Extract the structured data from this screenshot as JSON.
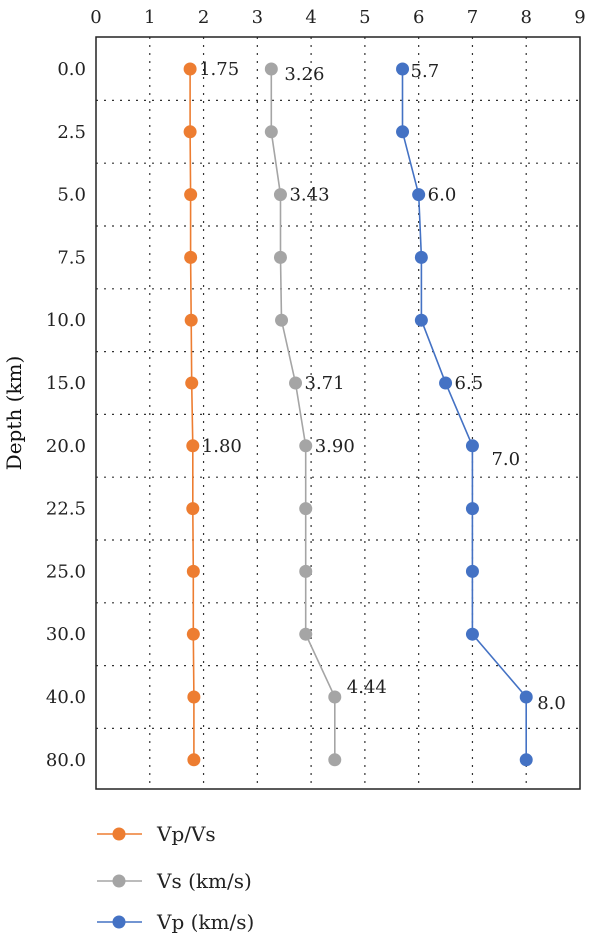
{
  "chart_data": {
    "type": "line",
    "ylabel": "Depth (km)",
    "xlim": [
      0,
      9
    ],
    "x_ticks": [
      "0",
      "1",
      "2",
      "3",
      "4",
      "5",
      "6",
      "7",
      "8",
      "9"
    ],
    "depth_categories": [
      "0.0",
      "2.5",
      "5.0",
      "7.5",
      "10.0",
      "15.0",
      "20.0",
      "22.5",
      "25.0",
      "30.0",
      "40.0",
      "80.0"
    ],
    "grid": true,
    "legend_position": "bottom-left",
    "series": [
      {
        "name": "Vp/Vs",
        "color": "#ED7D31",
        "values": [
          1.75,
          1.75,
          1.76,
          1.76,
          1.77,
          1.78,
          1.8,
          1.8,
          1.81,
          1.81,
          1.82,
          1.82
        ],
        "labels": [
          {
            "index": 0,
            "text": "1.75"
          },
          {
            "index": 6,
            "text": "1.80"
          }
        ]
      },
      {
        "name": "Vs (km/s)",
        "color": "#A5A5A5",
        "values": [
          3.26,
          3.26,
          3.43,
          3.43,
          3.45,
          3.71,
          3.9,
          3.9,
          3.9,
          3.9,
          4.44,
          4.44
        ],
        "labels": [
          {
            "index": 0,
            "text": "3.26"
          },
          {
            "index": 2,
            "text": "3.43"
          },
          {
            "index": 5,
            "text": "3.71"
          },
          {
            "index": 6,
            "text": "3.90"
          },
          {
            "index": 10,
            "text": "4.44"
          }
        ]
      },
      {
        "name": "Vp (km/s)",
        "color": "#4472C4",
        "values": [
          5.7,
          5.7,
          6.0,
          6.05,
          6.05,
          6.5,
          7.0,
          7.0,
          7.0,
          7.0,
          8.0,
          8.0
        ],
        "labels": [
          {
            "index": 0,
            "text": "5.7"
          },
          {
            "index": 2,
            "text": "6.0"
          },
          {
            "index": 5,
            "text": "6.5"
          },
          {
            "index": 6,
            "text": "7.0"
          },
          {
            "index": 10,
            "text": "8.0"
          }
        ]
      }
    ]
  }
}
